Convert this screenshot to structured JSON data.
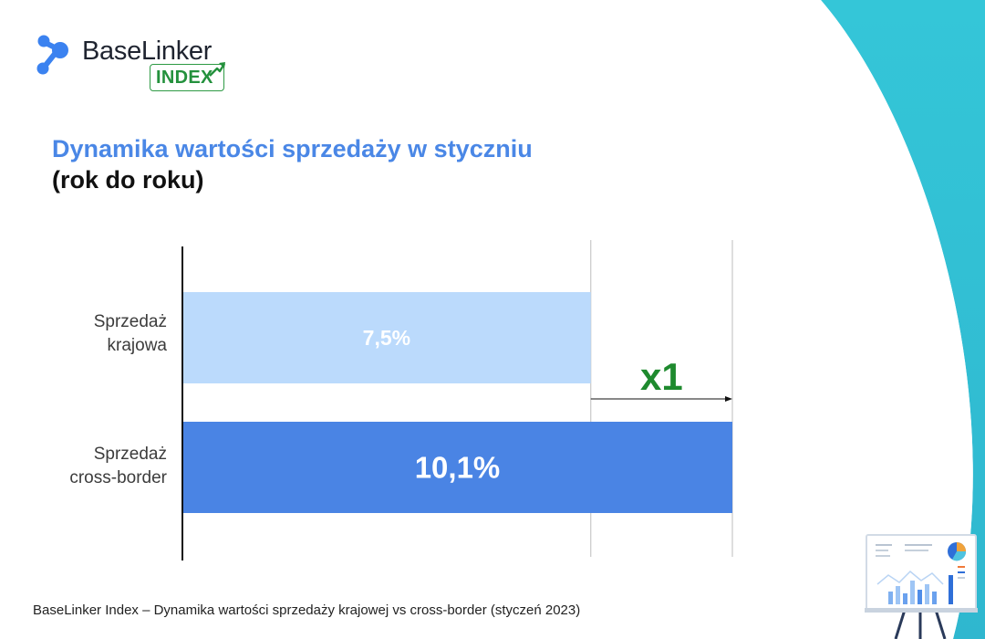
{
  "brand": {
    "name": "BaseLinker",
    "badge": "INDEX"
  },
  "title": {
    "line1": "Dynamika wartości sprzedaży w styczniu",
    "line2": "(rok do roku)"
  },
  "chart_data": {
    "type": "bar",
    "orientation": "horizontal",
    "categories": [
      [
        "Sprzedaż",
        "krajowa"
      ],
      [
        "Sprzedaż",
        "cross-border"
      ]
    ],
    "values": [
      7.5,
      10.1
    ],
    "value_labels": [
      "7,5%",
      "10,1%"
    ],
    "colors": [
      "#bbdafc",
      "#4a84e4"
    ],
    "value_label_colors": [
      "#ffffff",
      "#ffffff"
    ],
    "annotation": {
      "text": "x1",
      "color": "#1e8a2e"
    },
    "grid": "vertical reference lines at bar ends"
  },
  "footer": "BaseLinker Index – Dynamika wartości sprzedaży krajowej vs cross-border (styczeń 2023)",
  "decor": {
    "accent": "#3cc6d6",
    "illustration": "presentation-board-icon"
  }
}
